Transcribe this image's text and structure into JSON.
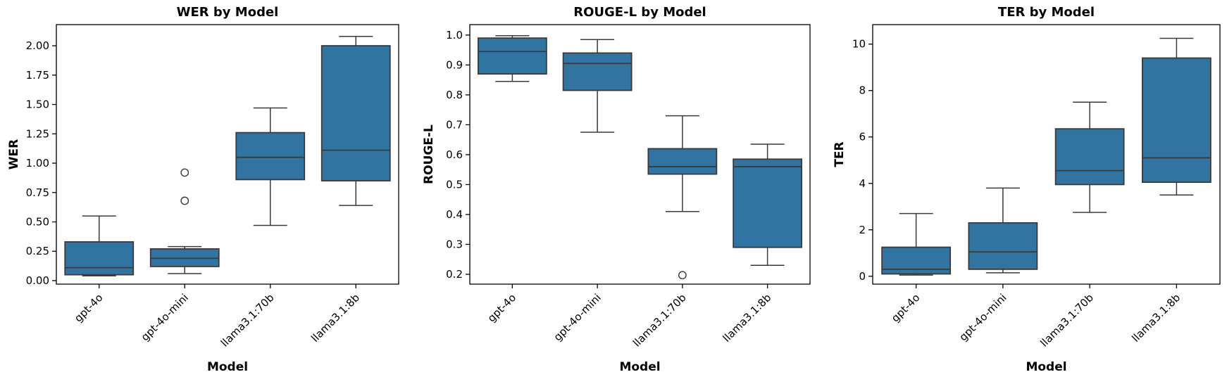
{
  "figure": {
    "background": "#ffffff",
    "box_fill": "#3274A1",
    "box_edge": "#3A3A3A",
    "whisker_color": "#3A3A3A",
    "spine_color": "#000000",
    "outlier_edge": "#3A3A3A"
  },
  "chart_data": [
    {
      "type": "boxplot",
      "title": "WER by Model",
      "xlabel": "Model",
      "ylabel": "WER",
      "grid": false,
      "legend": null,
      "categories": [
        "gpt-4o",
        "gpt-4o-mini",
        "llama3.1:70b",
        "llama3.1:8b"
      ],
      "ylim": [
        -0.03,
        2.18
      ],
      "ytick_values": [
        0.0,
        0.25,
        0.5,
        0.75,
        1.0,
        1.25,
        1.5,
        1.75,
        2.0
      ],
      "ytick_labels": [
        "0.00",
        "0.25",
        "0.50",
        "0.75",
        "1.00",
        "1.25",
        "1.50",
        "1.75",
        "2.00"
      ],
      "series": [
        {
          "category": "gpt-4o",
          "whisker_low": 0.04,
          "q1": 0.05,
          "median": 0.11,
          "q3": 0.33,
          "whisker_high": 0.55,
          "outliers": []
        },
        {
          "category": "gpt-4o-mini",
          "whisker_low": 0.06,
          "q1": 0.12,
          "median": 0.19,
          "q3": 0.27,
          "whisker_high": 0.29,
          "outliers": [
            0.68,
            0.92
          ]
        },
        {
          "category": "llama3.1:70b",
          "whisker_low": 0.47,
          "q1": 0.86,
          "median": 1.05,
          "q3": 1.26,
          "whisker_high": 1.47,
          "outliers": []
        },
        {
          "category": "llama3.1:8b",
          "whisker_low": 0.64,
          "q1": 0.85,
          "median": 1.11,
          "q3": 2.0,
          "whisker_high": 2.08,
          "outliers": []
        }
      ]
    },
    {
      "type": "boxplot",
      "title": "ROUGE-L by Model",
      "xlabel": "Model",
      "ylabel": "ROUGE-L",
      "grid": false,
      "legend": null,
      "categories": [
        "gpt-4o",
        "gpt-4o-mini",
        "llama3.1:70b",
        "llama3.1:8b"
      ],
      "ylim": [
        0.167,
        1.035
      ],
      "ytick_values": [
        0.2,
        0.3,
        0.4,
        0.5,
        0.6,
        0.7,
        0.8,
        0.9,
        1.0
      ],
      "ytick_labels": [
        "0.2",
        "0.3",
        "0.4",
        "0.5",
        "0.6",
        "0.7",
        "0.8",
        "0.9",
        "1.0"
      ],
      "series": [
        {
          "category": "gpt-4o",
          "whisker_low": 0.845,
          "q1": 0.87,
          "median": 0.945,
          "q3": 0.99,
          "whisker_high": 0.998,
          "outliers": []
        },
        {
          "category": "gpt-4o-mini",
          "whisker_low": 0.675,
          "q1": 0.815,
          "median": 0.905,
          "q3": 0.94,
          "whisker_high": 0.985,
          "outliers": []
        },
        {
          "category": "llama3.1:70b",
          "whisker_low": 0.41,
          "q1": 0.535,
          "median": 0.56,
          "q3": 0.62,
          "whisker_high": 0.73,
          "outliers": [
            0.197
          ]
        },
        {
          "category": "llama3.1:8b",
          "whisker_low": 0.23,
          "q1": 0.29,
          "median": 0.56,
          "q3": 0.585,
          "whisker_high": 0.635,
          "outliers": []
        }
      ]
    },
    {
      "type": "boxplot",
      "title": "TER by Model",
      "xlabel": "Model",
      "ylabel": "TER",
      "grid": false,
      "legend": null,
      "categories": [
        "gpt-4o",
        "gpt-4o-mini",
        "llama3.1:70b",
        "llama3.1:8b"
      ],
      "ylim": [
        -0.34,
        10.84
      ],
      "ytick_values": [
        0,
        2,
        4,
        6,
        8,
        10
      ],
      "ytick_labels": [
        "0",
        "2",
        "4",
        "6",
        "8",
        "10"
      ],
      "series": [
        {
          "category": "gpt-4o",
          "whisker_low": 0.05,
          "q1": 0.1,
          "median": 0.3,
          "q3": 1.25,
          "whisker_high": 2.7,
          "outliers": []
        },
        {
          "category": "gpt-4o-mini",
          "whisker_low": 0.15,
          "q1": 0.3,
          "median": 1.05,
          "q3": 2.3,
          "whisker_high": 3.8,
          "outliers": []
        },
        {
          "category": "llama3.1:70b",
          "whisker_low": 2.75,
          "q1": 3.95,
          "median": 4.55,
          "q3": 6.35,
          "whisker_high": 7.5,
          "outliers": []
        },
        {
          "category": "llama3.1:8b",
          "whisker_low": 3.5,
          "q1": 4.05,
          "median": 5.1,
          "q3": 9.4,
          "whisker_high": 10.25,
          "outliers": []
        }
      ]
    }
  ]
}
